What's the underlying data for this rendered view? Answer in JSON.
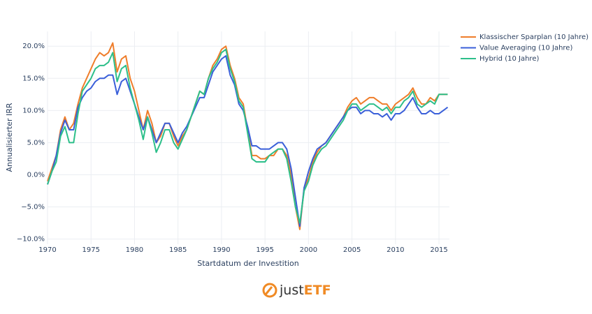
{
  "chart_data": {
    "type": "line",
    "xlabel": "Startdatum der Investition",
    "ylabel": "Annualisierter IRR",
    "x": [
      1970,
      1970.5,
      1971,
      1971.5,
      1972,
      1972.5,
      1973,
      1973.5,
      1974,
      1974.5,
      1975,
      1975.5,
      1976,
      1976.5,
      1977,
      1977.5,
      1978,
      1978.5,
      1979,
      1979.5,
      1980,
      1980.5,
      1981,
      1981.5,
      1982,
      1982.5,
      1983,
      1983.5,
      1984,
      1984.5,
      1985,
      1985.5,
      1986,
      1986.5,
      1987,
      1987.5,
      1988,
      1988.5,
      1989,
      1989.5,
      1990,
      1990.5,
      1991,
      1991.5,
      1992,
      1992.5,
      1993,
      1993.5,
      1994,
      1994.5,
      1995,
      1995.5,
      1996,
      1996.5,
      1997,
      1997.5,
      1998,
      1998.5,
      1999,
      1999.5,
      2000,
      2000.5,
      2001,
      2001.5,
      2002,
      2002.5,
      2003,
      2003.5,
      2004,
      2004.5,
      2005,
      2005.5,
      2006,
      2006.5,
      2007,
      2007.5,
      2008,
      2008.5,
      2009,
      2009.5,
      2010,
      2010.5,
      2011,
      2011.5,
      2012,
      2012.5,
      2013,
      2013.5,
      2014,
      2014.5,
      2015,
      2015.5,
      2016
    ],
    "series": [
      {
        "name": "Klassischer Sparplan (10 Jahre)",
        "color": "#ef7d2a",
        "values": [
          -1,
          1,
          3,
          7,
          9,
          7,
          8,
          11,
          13.5,
          15,
          16.5,
          18,
          19,
          18.5,
          19,
          20.5,
          16,
          18,
          18.5,
          15,
          13,
          10,
          7,
          10,
          8,
          5,
          6,
          8,
          8,
          6,
          4.5,
          6,
          7,
          9,
          11,
          13,
          12.5,
          15,
          17,
          18,
          19.5,
          20,
          17,
          15,
          12,
          11,
          7,
          3,
          3,
          2.5,
          2.5,
          3,
          3,
          4,
          4,
          3,
          0,
          -5,
          -8.5,
          -2,
          -0.5,
          2,
          3.5,
          4.5,
          5,
          6,
          7,
          8,
          9,
          10.5,
          11.5,
          12,
          11,
          11.5,
          12,
          12,
          11.5,
          11,
          11,
          10,
          11,
          11.5,
          12,
          12.5,
          13.5,
          12,
          11,
          11,
          12,
          11.5,
          12.5,
          12.5,
          12.5
        ]
      },
      {
        "name": "Value Averaging (10 Jahre)",
        "color": "#3a5fd9",
        "values": [
          -1.5,
          0.5,
          3,
          6.5,
          8.5,
          7,
          7,
          10.5,
          12,
          13,
          13.5,
          14.5,
          15,
          15,
          15.5,
          15.5,
          12.5,
          14.5,
          15,
          13,
          11,
          9,
          7,
          9,
          7,
          5,
          6.5,
          8,
          8,
          6.5,
          5,
          6.5,
          7.5,
          9,
          10.5,
          12,
          12,
          14,
          16,
          17,
          18,
          18.5,
          15.5,
          14,
          11,
          10,
          7.5,
          4.5,
          4.5,
          4,
          4,
          4,
          4.5,
          5,
          5,
          4,
          1,
          -3.5,
          -8,
          -2,
          0.5,
          2.5,
          4,
          4.5,
          5,
          6,
          7,
          8,
          9,
          10,
          10.5,
          10.5,
          9.5,
          10,
          10,
          9.5,
          9.5,
          9,
          9.5,
          8.5,
          9.5,
          9.5,
          10,
          11,
          12,
          10.5,
          9.5,
          9.5,
          10,
          9.5,
          9.5,
          10,
          10.5
        ]
      },
      {
        "name": "Hybrid (10 Jahre)",
        "color": "#2dbf8a",
        "values": [
          -1.5,
          0.5,
          2,
          6,
          7.5,
          5,
          5,
          9.5,
          13,
          14,
          15,
          16.5,
          17,
          17,
          17.5,
          19,
          14.5,
          16.5,
          17,
          13.5,
          11,
          8.5,
          5.5,
          9,
          6.5,
          3.5,
          5,
          7,
          7,
          5,
          4,
          5.5,
          7,
          9,
          11,
          13,
          12.5,
          15,
          16.5,
          17.5,
          19,
          19.5,
          16.5,
          14.5,
          11.5,
          10.5,
          6.5,
          2.5,
          2,
          2,
          2,
          3,
          3.5,
          4,
          4,
          2.5,
          -1,
          -5,
          -7.5,
          -2.5,
          -1,
          1.5,
          3,
          4,
          4.5,
          5.5,
          6.5,
          7.5,
          8.5,
          10,
          11,
          11,
          10,
          10.5,
          11,
          11,
          10.5,
          10,
          10.5,
          9.5,
          10.5,
          10.5,
          11.5,
          12,
          13,
          11,
          10.5,
          11,
          11.5,
          11,
          12.5,
          12.5,
          12.5
        ]
      }
    ],
    "xlim": [
      1970,
      2016.2
    ],
    "ylim": [
      -10.8,
      22.3
    ],
    "xticks": [
      1970,
      1975,
      1980,
      1985,
      1990,
      1995,
      2000,
      2005,
      2010,
      2015
    ],
    "yticks": [
      {
        "value": -10,
        "label": "−10.0%"
      },
      {
        "value": -5,
        "label": "−5.0%"
      },
      {
        "value": 0,
        "label": "0.0%"
      },
      {
        "value": 5,
        "label": "5.0%"
      },
      {
        "value": 10,
        "label": "10.0%"
      },
      {
        "value": 15,
        "label": "15.0%"
      },
      {
        "value": 20,
        "label": "20.0%"
      }
    ],
    "grid": true,
    "legend": "right"
  },
  "logo": [
    "just",
    "ETF"
  ]
}
